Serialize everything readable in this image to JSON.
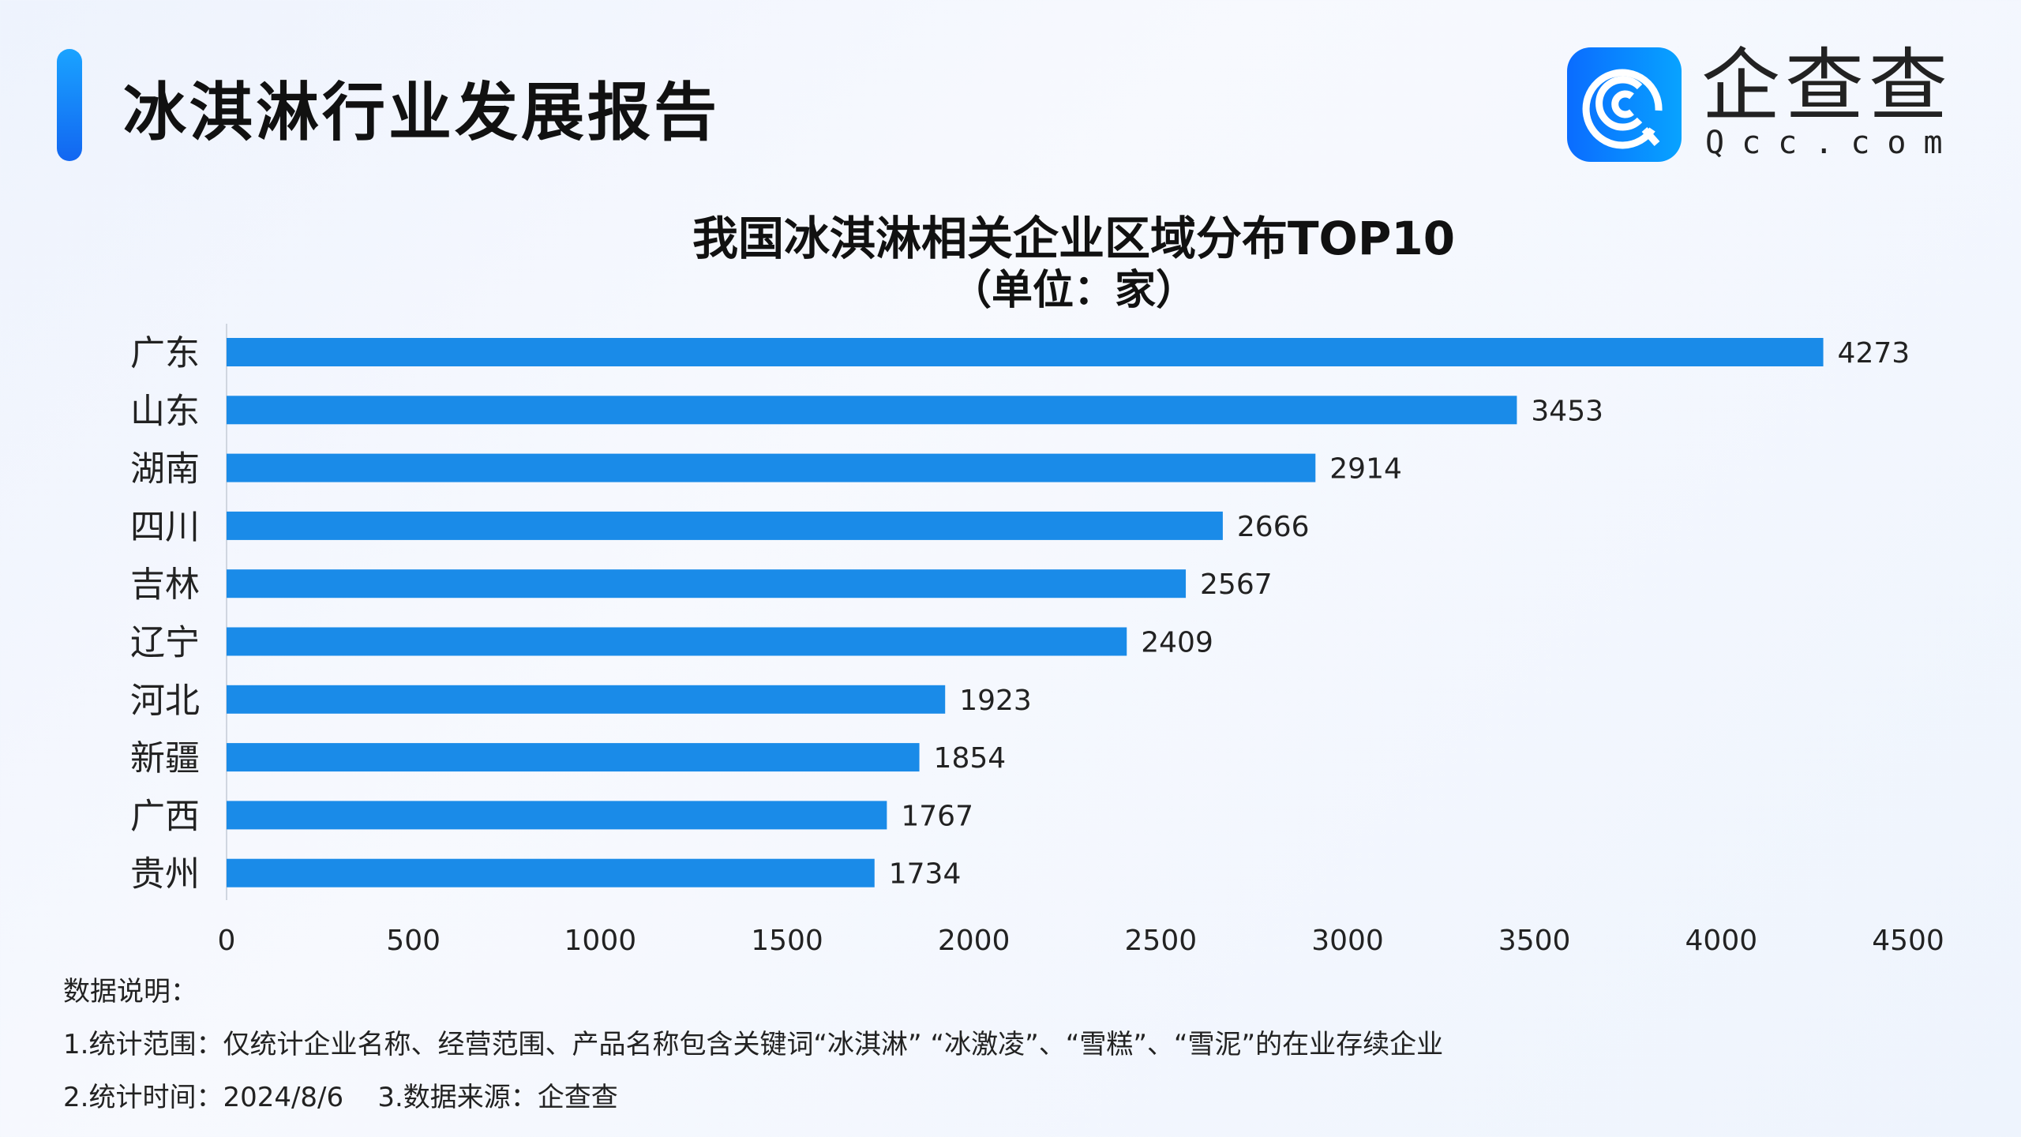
{
  "header": {
    "title": "冰淇淋行业发展报告"
  },
  "logo": {
    "name_cn": "企查查",
    "name_en": "Qcc.com",
    "colors": [
      "#0a6cff",
      "#08a3ff"
    ]
  },
  "chart_data": {
    "type": "bar",
    "orientation": "horizontal",
    "title": "我国冰淇淋相关企业区域分布TOP10",
    "subtitle": "（单位：家）",
    "categories": [
      "广东",
      "山东",
      "湖南",
      "四川",
      "吉林",
      "辽宁",
      "河北",
      "新疆",
      "广西",
      "贵州"
    ],
    "values": [
      4273,
      3453,
      2914,
      2666,
      2567,
      2409,
      1923,
      1854,
      1767,
      1734
    ],
    "xlim": [
      0,
      4500
    ],
    "xticks": [
      0,
      500,
      1000,
      1500,
      2000,
      2500,
      3000,
      3500,
      4000,
      4500
    ],
    "grid": false,
    "bar_color": "#1a8be8",
    "data_labels": true
  },
  "notes": {
    "heading": "数据说明：",
    "line1": "1.统计范围：仅统计企业名称、经营范围、产品名称包含关键词“冰淇淋” “冰激凌”、“雪糕”、“雪泥”的在业存续企业",
    "line2": "2.统计时间：2024/8/6    3.数据来源：企查查"
  }
}
